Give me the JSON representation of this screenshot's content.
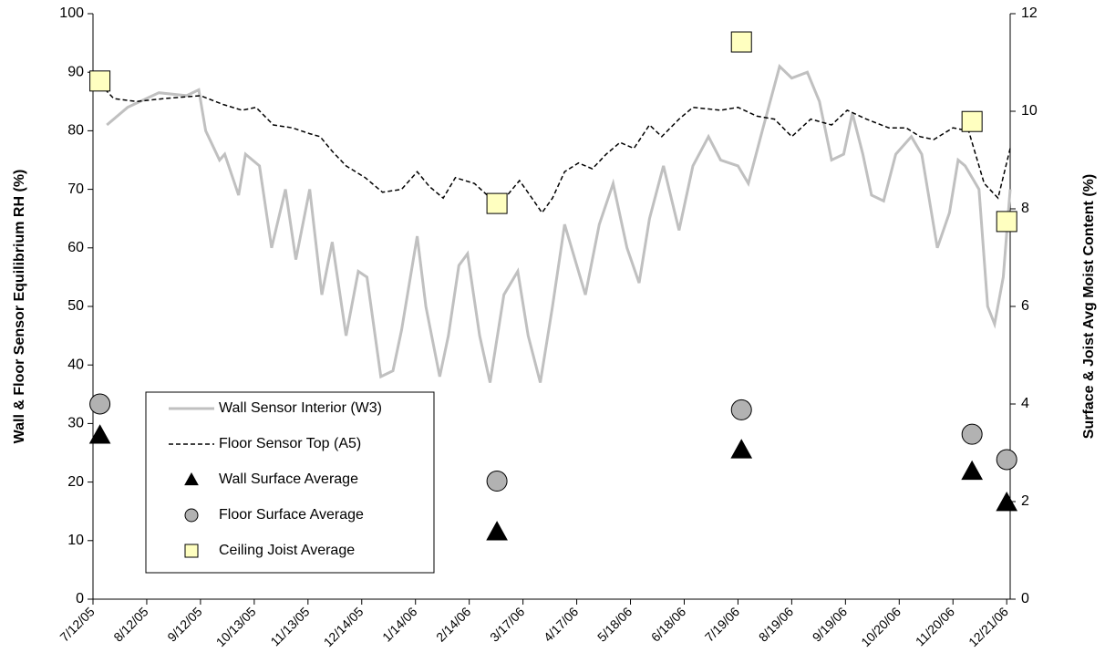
{
  "chart_data": {
    "type": "line",
    "y_label": "Wall & Floor Sensor Equilibrium RH (%)",
    "y2_label": "Surface & Joist Avg Moist Content (%)",
    "xlim": [
      "7/12/05",
      "12/23/06"
    ],
    "xticks": [
      "7/12/05",
      "8/12/05",
      "9/12/05",
      "10/13/05",
      "11/13/05",
      "12/14/05",
      "1/14/06",
      "2/14/06",
      "3/17/06",
      "4/17/06",
      "5/18/06",
      "6/18/06",
      "7/19/06",
      "8/19/06",
      "9/19/06",
      "10/20/06",
      "11/20/06",
      "12/21/06"
    ],
    "ylim": [
      0,
      100
    ],
    "yticks": [
      0,
      10,
      20,
      30,
      40,
      50,
      60,
      70,
      80,
      90,
      100
    ],
    "y2lim": [
      0,
      12
    ],
    "y2ticks": [
      0,
      2,
      4,
      6,
      8,
      10,
      12
    ],
    "series": [
      {
        "name": "Wall Sensor Interior (W3)",
        "type": "line",
        "color": "#c0c0c0",
        "dash": false,
        "x": [
          "7/20/05",
          "8/1/05",
          "8/19/05",
          "9/4/05",
          "9/11/05",
          "9/15/05",
          "9/23/05",
          "9/26/05",
          "10/4/05",
          "10/8/05",
          "10/16/05",
          "10/23/05",
          "10/31/05",
          "11/6/05",
          "11/14/05",
          "11/21/05",
          "11/27/05",
          "12/5/05",
          "12/12/05",
          "12/17/05",
          "12/25/05",
          "1/1/06",
          "1/6/06",
          "1/15/06",
          "1/20/06",
          "1/28/06",
          "2/2/06",
          "2/8/06",
          "2/13/06",
          "2/20/06",
          "2/26/06",
          "3/6/06",
          "3/14/06",
          "3/20/06",
          "3/27/06",
          "4/3/06",
          "4/10/06",
          "4/15/06",
          "4/22/06",
          "4/30/06",
          "5/8/06",
          "5/16/06",
          "5/23/06",
          "5/29/06",
          "6/6/06",
          "6/15/06",
          "6/23/06",
          "7/2/06",
          "7/9/06",
          "7/19/06",
          "7/25/06",
          "8/2/06",
          "8/12/06",
          "8/19/06",
          "8/28/06",
          "9/4/06",
          "9/11/06",
          "9/18/06",
          "9/23/06",
          "9/29/06",
          "10/4/06",
          "10/11/06",
          "10/18/06",
          "10/27/06",
          "11/2/06",
          "11/11/06",
          "11/18/06",
          "11/23/06",
          "11/27/06",
          "12/5/06",
          "12/10/06",
          "12/14/06",
          "12/19/06",
          "12/23/06"
        ],
        "values": [
          81,
          84,
          86.5,
          86,
          87,
          80,
          75,
          76,
          69,
          76,
          74,
          60,
          70,
          58,
          70,
          52,
          61,
          45,
          56,
          55,
          38,
          39,
          46,
          62,
          50,
          38,
          45,
          57,
          59,
          45,
          37,
          52,
          56,
          45,
          37,
          50,
          64,
          59,
          52,
          64,
          71,
          60,
          54,
          65,
          74,
          63,
          74,
          79,
          75,
          74,
          71,
          80,
          91,
          89,
          90,
          85,
          75,
          76,
          83,
          76,
          69,
          68,
          76,
          79,
          76,
          60,
          66,
          75,
          74,
          70,
          50,
          47,
          55,
          70
        ]
      },
      {
        "name": "Floor Sensor Top (A5)",
        "type": "line",
        "color": "#000000",
        "dash": true,
        "x": [
          "7/16/05",
          "7/24/05",
          "8/6/05",
          "8/22/05",
          "9/12/05",
          "9/25/05",
          "10/6/05",
          "10/14/05",
          "10/24/05",
          "11/4/05",
          "11/14/05",
          "11/20/05",
          "11/27/05",
          "12/5/05",
          "12/16/05",
          "12/26/05",
          "1/6/06",
          "1/15/06",
          "1/22/06",
          "1/30/06",
          "2/6/06",
          "2/17/06",
          "2/28/06",
          "3/8/06",
          "3/15/06",
          "3/21/06",
          "3/28/06",
          "4/3/06",
          "4/10/06",
          "4/18/06",
          "4/26/06",
          "5/4/06",
          "5/12/06",
          "5/20/06",
          "5/29/06",
          "6/5/06",
          "6/15/06",
          "6/23/06",
          "7/9/06",
          "7/19/06",
          "7/30/06",
          "8/9/06",
          "8/19/06",
          "8/30/06",
          "9/11/06",
          "9/20/06",
          "10/1/06",
          "10/14/06",
          "10/24/06",
          "11/1/06",
          "11/9/06",
          "11/20/06",
          "11/29/06",
          "12/8/06",
          "12/16/06",
          "12/23/06"
        ],
        "values": [
          88,
          85.5,
          85,
          85.5,
          86,
          84.5,
          83.5,
          84,
          81,
          80.5,
          79.5,
          79,
          76.5,
          74,
          72,
          69.5,
          70,
          73,
          70.5,
          68.5,
          72,
          71,
          68,
          69,
          71.5,
          69,
          66,
          68.5,
          73,
          74.5,
          73.5,
          76,
          78,
          77,
          81,
          79,
          82,
          84,
          83.5,
          84,
          82.5,
          82,
          79,
          82,
          81,
          83.5,
          82,
          80.5,
          80.5,
          79,
          78.5,
          80.5,
          80,
          71,
          68.5,
          77
        ]
      },
      {
        "name": "Wall Surface Average",
        "type": "scatter",
        "marker": "triangle",
        "color": "#000000",
        "axis": "y2",
        "x": [
          "7/16/05",
          "3/2/06",
          "7/21/06",
          "12/1/06",
          "12/21/06"
        ],
        "values": [
          3.36,
          1.38,
          3.06,
          2.62,
          1.98
        ]
      },
      {
        "name": "Floor Surface Average",
        "type": "scatter",
        "marker": "circle",
        "color": "#b2b2b2",
        "axis": "y2",
        "x": [
          "7/16/05",
          "3/2/06",
          "7/21/06",
          "12/1/06",
          "12/21/06"
        ],
        "values": [
          4.0,
          2.42,
          3.88,
          3.38,
          2.86
        ]
      },
      {
        "name": "Ceiling Joist Average",
        "type": "scatter",
        "marker": "square",
        "color": "#ffffc0",
        "axis": "y2",
        "x": [
          "7/16/05",
          "3/2/06",
          "7/21/06",
          "12/1/06",
          "12/21/06"
        ],
        "values": [
          10.62,
          8.11,
          11.42,
          9.79,
          7.74
        ]
      }
    ]
  }
}
